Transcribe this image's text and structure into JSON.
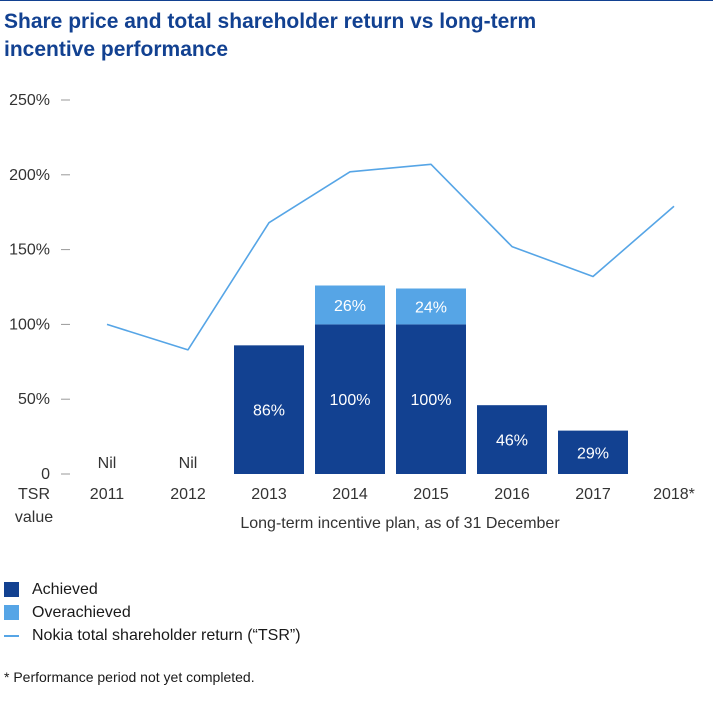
{
  "title": "Share price and total shareholder return vs long-term incentive performance",
  "colors": {
    "achieved": "#124191",
    "overachieved": "#56a5e6",
    "tsr_line": "#56a5e6",
    "title": "#124191",
    "bar_text": "#ffffff",
    "axis_text": "#333333",
    "tick": "#999999"
  },
  "chart_data": {
    "type": "bar",
    "title": "Share price and total shareholder return vs long-term incentive performance",
    "categories": [
      "2011",
      "2012",
      "2013",
      "2014",
      "2015",
      "2016",
      "2017",
      "2018*"
    ],
    "y_tick_labels": [
      "0",
      "50%",
      "100%",
      "150%",
      "200%",
      "250%"
    ],
    "y_ticks": [
      0,
      50,
      100,
      150,
      200,
      250
    ],
    "ylim": [
      0,
      250
    ],
    "ylabel": "TSR value",
    "y_axis_label_lines": [
      "TSR",
      "value"
    ],
    "xlabel": "Long-term incentive plan, as of 31 December",
    "series": [
      {
        "name": "Achieved",
        "kind": "bar",
        "values": [
          0,
          0,
          86,
          100,
          100,
          46,
          29,
          null
        ],
        "labels": [
          "Nil",
          "Nil",
          "86%",
          "100%",
          "100%",
          "46%",
          "29%",
          ""
        ]
      },
      {
        "name": "Overachieved",
        "kind": "bar-stacked",
        "values": [
          0,
          0,
          0,
          26,
          24,
          0,
          0,
          null
        ],
        "labels": [
          "",
          "",
          "",
          "26%",
          "24%",
          "",
          "",
          ""
        ]
      },
      {
        "name": "Nokia total shareholder return (“TSR”)",
        "kind": "line",
        "values": [
          100,
          83,
          168,
          202,
          207,
          152,
          132,
          179
        ]
      }
    ],
    "legend": [
      "Achieved",
      "Overachieved",
      "Nokia total shareholder return (“TSR”)"
    ],
    "legend_position": "bottom-left",
    "grid": false
  },
  "footnote": "* Performance period not yet completed."
}
